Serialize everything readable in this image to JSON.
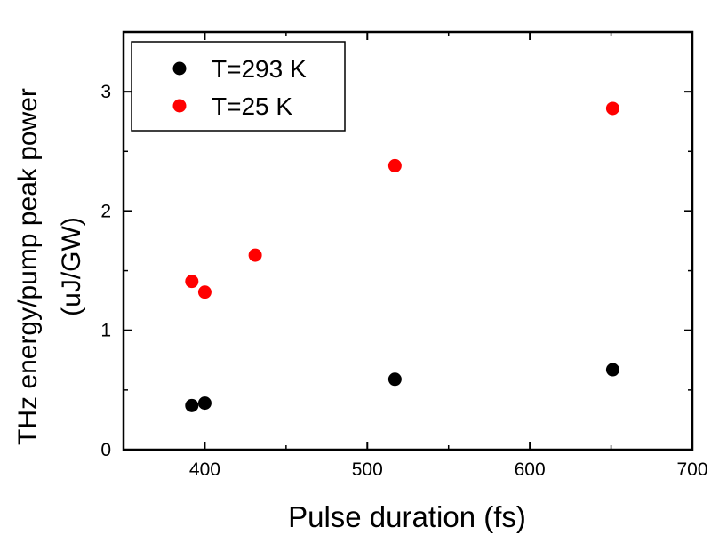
{
  "chart_data": {
    "type": "scatter",
    "title": "",
    "xlabel": "Pulse duration (fs)",
    "ylabel_line1": "THz energy/pump peak power",
    "ylabel_line2": "(uJ/GW)",
    "xlim": [
      350,
      700
    ],
    "ylim": [
      0,
      3.5
    ],
    "x_ticks": [
      400,
      500,
      600,
      700
    ],
    "x_tick_labels": [
      "400",
      "500",
      "600",
      "700"
    ],
    "y_ticks": [
      0,
      1,
      2,
      3
    ],
    "y_tick_labels": [
      "0",
      "1",
      "2",
      "3"
    ],
    "grid": false,
    "legend_position": "top-left",
    "series": [
      {
        "name": "T=293 K",
        "color": "#000000",
        "points": [
          {
            "x": 392,
            "y": 0.37
          },
          {
            "x": 400,
            "y": 0.39
          },
          {
            "x": 517,
            "y": 0.59
          },
          {
            "x": 651,
            "y": 0.67
          }
        ]
      },
      {
        "name": "T=25 K",
        "color": "#ff0000",
        "points": [
          {
            "x": 392,
            "y": 1.41
          },
          {
            "x": 400,
            "y": 1.32
          },
          {
            "x": 431,
            "y": 1.63
          },
          {
            "x": 517,
            "y": 2.38
          },
          {
            "x": 651,
            "y": 2.86
          }
        ]
      }
    ]
  }
}
